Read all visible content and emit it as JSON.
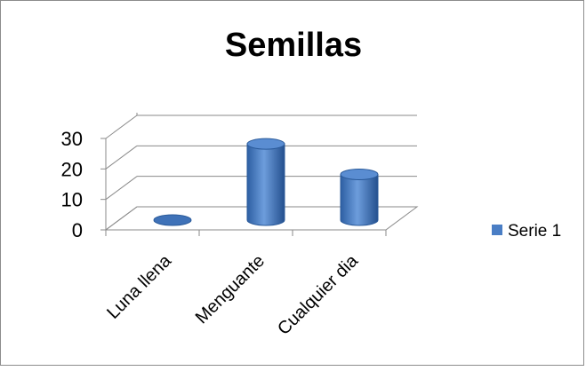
{
  "chart_data": {
    "type": "bar",
    "style": "3d-cylinder",
    "title": "Semillas",
    "categories": [
      "Luna llena",
      "Menguante",
      "Cualquier dia"
    ],
    "series": [
      {
        "name": "Serie 1",
        "values": [
          0,
          25,
          15
        ],
        "color": "#4a7ec5"
      }
    ],
    "ylim": [
      0,
      30
    ],
    "yticks": [
      0,
      10,
      20,
      30
    ],
    "grid": true,
    "legend_position": "right"
  }
}
